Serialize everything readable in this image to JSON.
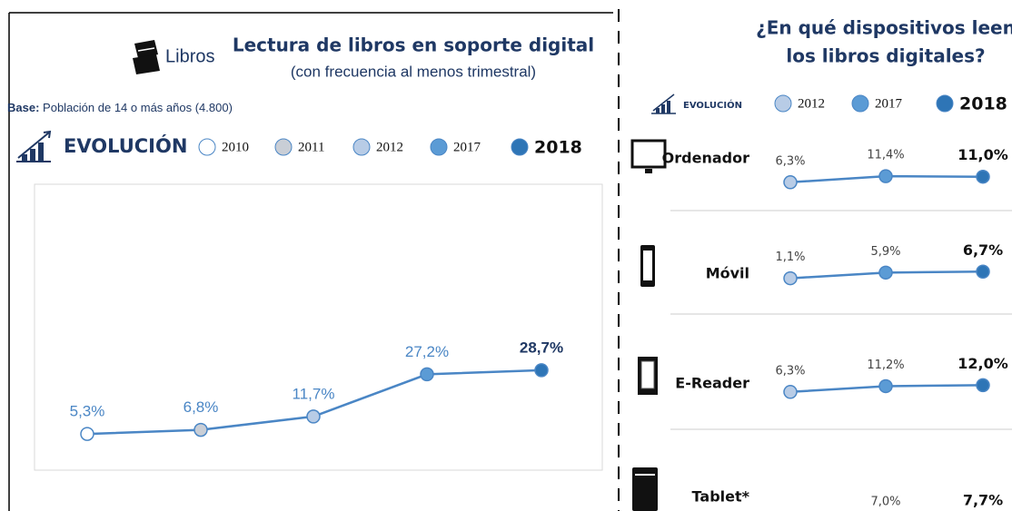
{
  "chart_data": [
    {
      "type": "line",
      "header": "Libros",
      "title": "Lectura de libros en soporte digital",
      "subtitle": "(con frecuencia al menos trimestral)",
      "base_label": "Base:",
      "base_text": "Población de 14 o más años (4.800)",
      "legend_title": "EVOLUCIÓN",
      "categories": [
        "2010",
        "2011",
        "2012",
        "2017",
        "2018"
      ],
      "values": [
        5.3,
        6.8,
        11.7,
        27.2,
        28.7
      ],
      "value_labels": [
        "5,3%",
        "6,8%",
        "11,7%",
        "27,2%",
        "28,7%"
      ],
      "colors": [
        "#ffffff",
        "#c9ced6",
        "#b8cce6",
        "#5b9bd5",
        "#2e75b6"
      ],
      "line_color": "#4a86c5",
      "ylim": [
        -8,
        97
      ]
    },
    {
      "type": "line",
      "title_lines": [
        "¿En qué dispositivos leen",
        "los libros digitales?"
      ],
      "legend_title": "EVOLUCIÓN",
      "categories": [
        "2012",
        "2017",
        "2018"
      ],
      "colors": [
        "#b8cce6",
        "#5b9bd5",
        "#2e75b6"
      ],
      "line_color": "#4a86c5",
      "ylim": [
        0,
        30
      ],
      "series": [
        {
          "name": "Ordenador",
          "values": [
            6.3,
            11.4,
            11.0
          ],
          "value_labels": [
            "6,3%",
            "11,4%",
            "11,0%"
          ]
        },
        {
          "name": "Móvil",
          "values": [
            1.1,
            5.9,
            6.7
          ],
          "value_labels": [
            "1,1%",
            "5,9%",
            "6,7%"
          ]
        },
        {
          "name": "E-Reader",
          "values": [
            6.3,
            11.2,
            12.0
          ],
          "value_labels": [
            "6,3%",
            "11,2%",
            "12,0%"
          ]
        },
        {
          "name": "Tablet*",
          "values": [
            null,
            7.0,
            7.7
          ],
          "value_labels": [
            null,
            "7,0%",
            "7,7%"
          ]
        }
      ]
    }
  ]
}
